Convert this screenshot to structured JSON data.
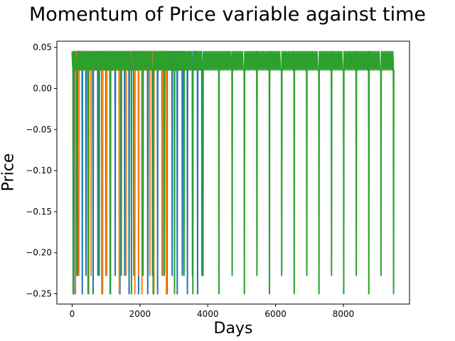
{
  "chart_data": {
    "type": "line",
    "title": "Momentum of Price variable against time",
    "xlabel": "Days",
    "ylabel": "Price",
    "xlim": [
      -450,
      9950
    ],
    "ylim": [
      -0.2625,
      0.0575
    ],
    "xticks": [
      0,
      2000,
      4000,
      6000,
      8000
    ],
    "xtick_labels": [
      "0",
      "2000",
      "4000",
      "6000",
      "8000"
    ],
    "yticks": [
      0.05,
      0.0,
      -0.05,
      -0.1,
      -0.15,
      -0.2,
      -0.25
    ],
    "ytick_labels": [
      "0.05",
      "0.00",
      "−0.05",
      "−0.10",
      "−0.15",
      "−0.20",
      "−0.25"
    ],
    "grid": false,
    "legend": "none",
    "levels": {
      "high": 0.045,
      "mid": 0.0225,
      "low_a": -0.25,
      "low_b": -0.2275
    },
    "series": [
      {
        "color": "#1f77b4",
        "x_range": [
          0,
          3830
        ],
        "dip_days": [
          80,
          170,
          300,
          410,
          620,
          760,
          880,
          1000,
          1130,
          1270,
          1410,
          1550,
          1680,
          1820,
          1960,
          2090,
          2230,
          2370,
          2520,
          2660,
          2800,
          2950,
          3100,
          3250,
          3400,
          3550,
          3700,
          3830
        ]
      },
      {
        "color": "#ff7f0e",
        "x_range": [
          0,
          2780
        ],
        "dip_days": [
          100,
          200,
          490,
          560,
          900,
          1020,
          1390,
          1590,
          1850,
          1960,
          2060,
          2290,
          2410,
          2680,
          2780
        ]
      },
      {
        "color": "#2ca02c",
        "x_range": [
          0,
          9480
        ],
        "dip_days": [
          30,
          140,
          470,
          800,
          1120,
          1450,
          1750,
          2080,
          2390,
          2720,
          3020,
          3300,
          3560,
          3860,
          4330,
          4720,
          5080,
          5450,
          5820,
          6180,
          6550,
          6920,
          7280,
          7650,
          8010,
          8380,
          8750,
          9110,
          9480
        ]
      }
    ]
  }
}
